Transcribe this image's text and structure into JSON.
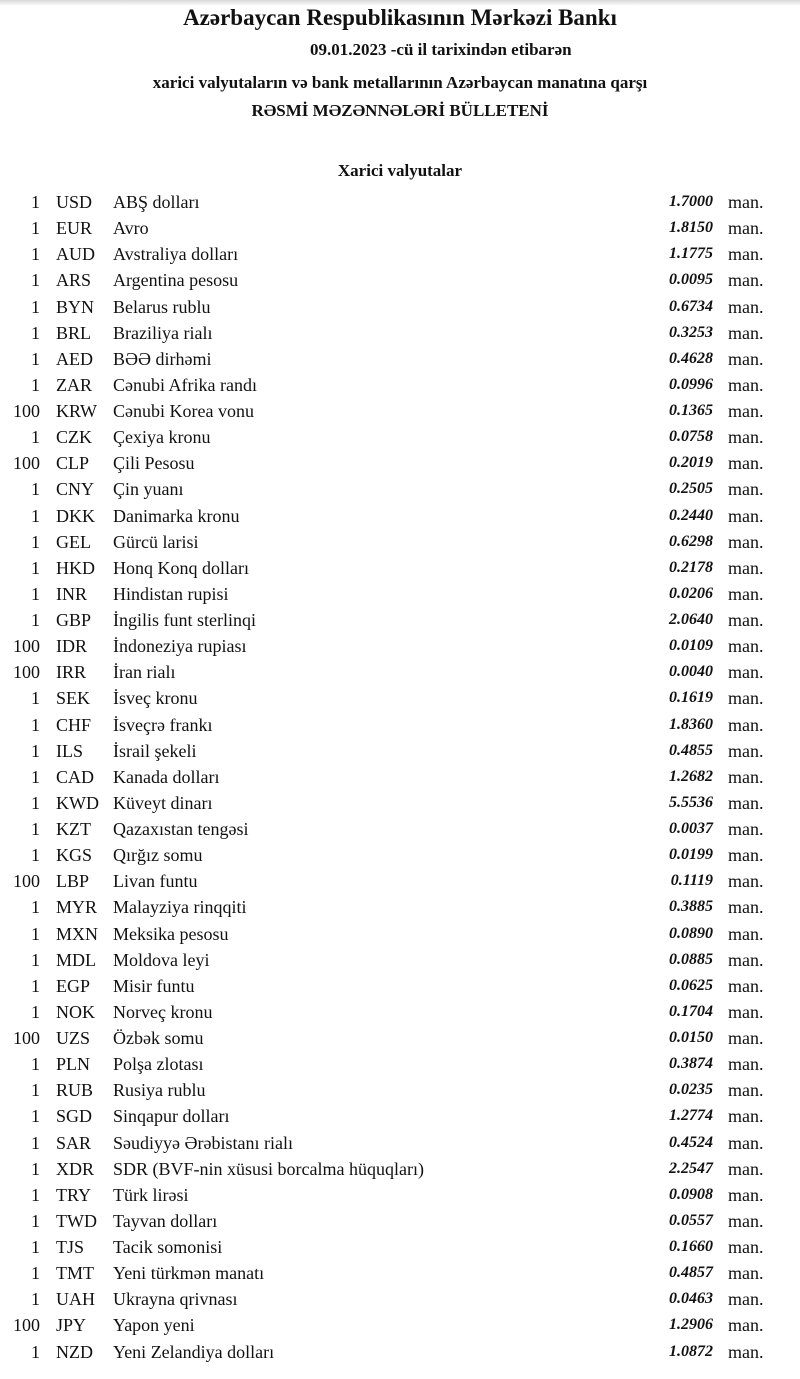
{
  "header": {
    "title": "Azərbaycan Respublikasının Mərkəzi Bankı",
    "date_line": "09.01.2023 -cü il tarixindən etibarən",
    "subtitle": "xarici valyutaların və bank metallarının Azərbaycan manatına qarşı",
    "bulletin": "RƏSMİ MƏZƏNNƏLƏRİ BÜLLETENİ",
    "section": "Xarici valyutalar"
  },
  "rates": [
    {
      "qty": "1",
      "code": "USD",
      "name": "ABŞ dolları",
      "value": "1.7000",
      "unit": "man."
    },
    {
      "qty": "1",
      "code": "EUR",
      "name": "Avro",
      "value": "1.8150",
      "unit": "man."
    },
    {
      "qty": "1",
      "code": "AUD",
      "name": "Avstraliya dolları",
      "value": "1.1775",
      "unit": "man."
    },
    {
      "qty": "1",
      "code": "ARS",
      "name": "Argentina pesosu",
      "value": "0.0095",
      "unit": "man."
    },
    {
      "qty": "1",
      "code": "BYN",
      "name": "Belarus rublu",
      "value": "0.6734",
      "unit": "man."
    },
    {
      "qty": "1",
      "code": "BRL",
      "name": "Braziliya rialı",
      "value": "0.3253",
      "unit": "man."
    },
    {
      "qty": "1",
      "code": "AED",
      "name": "BƏƏ dirhəmi",
      "value": "0.4628",
      "unit": "man."
    },
    {
      "qty": "1",
      "code": "ZAR",
      "name": "Cənubi Afrika randı",
      "value": "0.0996",
      "unit": "man."
    },
    {
      "qty": "100",
      "code": "KRW",
      "name": "Cənubi Korea vonu",
      "value": "0.1365",
      "unit": "man."
    },
    {
      "qty": "1",
      "code": "CZK",
      "name": "Çexiya kronu",
      "value": "0.0758",
      "unit": "man."
    },
    {
      "qty": "100",
      "code": "CLP",
      "name": "Çili Pesosu",
      "value": "0.2019",
      "unit": "man."
    },
    {
      "qty": "1",
      "code": "CNY",
      "name": "Çin yuanı",
      "value": "0.2505",
      "unit": "man."
    },
    {
      "qty": "1",
      "code": "DKK",
      "name": "Danimarka kronu",
      "value": "0.2440",
      "unit": "man."
    },
    {
      "qty": "1",
      "code": "GEL",
      "name": "Gürcü larisi",
      "value": "0.6298",
      "unit": "man."
    },
    {
      "qty": "1",
      "code": "HKD",
      "name": "Honq Konq dolları",
      "value": "0.2178",
      "unit": "man."
    },
    {
      "qty": "1",
      "code": "INR",
      "name": "Hindistan rupisi",
      "value": "0.0206",
      "unit": "man."
    },
    {
      "qty": "1",
      "code": "GBP",
      "name": "İngilis funt sterlinqi",
      "value": "2.0640",
      "unit": "man."
    },
    {
      "qty": "100",
      "code": "IDR",
      "name": "İndoneziya rupiası",
      "value": "0.0109",
      "unit": "man."
    },
    {
      "qty": "100",
      "code": "IRR",
      "name": "İran rialı",
      "value": "0.0040",
      "unit": "man."
    },
    {
      "qty": "1",
      "code": "SEK",
      "name": "İsveç kronu",
      "value": "0.1619",
      "unit": "man."
    },
    {
      "qty": "1",
      "code": "CHF",
      "name": "İsveçrə frankı",
      "value": "1.8360",
      "unit": "man."
    },
    {
      "qty": "1",
      "code": "ILS",
      "name": "İsrail şekeli",
      "value": "0.4855",
      "unit": "man."
    },
    {
      "qty": "1",
      "code": "CAD",
      "name": "Kanada dolları",
      "value": "1.2682",
      "unit": "man."
    },
    {
      "qty": "1",
      "code": "KWD",
      "name": "Küveyt dinarı",
      "value": "5.5536",
      "unit": "man."
    },
    {
      "qty": "1",
      "code": "KZT",
      "name": "Qazaxıstan tengəsi",
      "value": "0.0037",
      "unit": "man."
    },
    {
      "qty": "1",
      "code": "KGS",
      "name": "Qırğız somu",
      "value": "0.0199",
      "unit": "man."
    },
    {
      "qty": "100",
      "code": "LBP",
      "name": "Livan funtu",
      "value": "0.1119",
      "unit": "man."
    },
    {
      "qty": "1",
      "code": "MYR",
      "name": "Malayziya rinqqiti",
      "value": "0.3885",
      "unit": "man."
    },
    {
      "qty": "1",
      "code": "MXN",
      "name": "Meksika pesosu",
      "value": "0.0890",
      "unit": "man."
    },
    {
      "qty": "1",
      "code": "MDL",
      "name": "Moldova leyi",
      "value": "0.0885",
      "unit": "man."
    },
    {
      "qty": "1",
      "code": "EGP",
      "name": "Misir funtu",
      "value": "0.0625",
      "unit": "man."
    },
    {
      "qty": "1",
      "code": "NOK",
      "name": "Norveç kronu",
      "value": "0.1704",
      "unit": "man."
    },
    {
      "qty": "100",
      "code": "UZS",
      "name": "Özbək somu",
      "value": "0.0150",
      "unit": "man."
    },
    {
      "qty": "1",
      "code": "PLN",
      "name": "Polşa zlotası",
      "value": "0.3874",
      "unit": "man."
    },
    {
      "qty": "1",
      "code": "RUB",
      "name": "Rusiya rublu",
      "value": "0.0235",
      "unit": "man."
    },
    {
      "qty": "1",
      "code": "SGD",
      "name": "Sinqapur dolları",
      "value": "1.2774",
      "unit": "man."
    },
    {
      "qty": "1",
      "code": "SAR",
      "name": "Səudiyyə Ərəbistanı rialı",
      "value": "0.4524",
      "unit": "man."
    },
    {
      "qty": "1",
      "code": "XDR",
      "name": "SDR (BVF-nin xüsusi borcalma hüquqları)",
      "value": "2.2547",
      "unit": "man."
    },
    {
      "qty": "1",
      "code": "TRY",
      "name": "Türk lirəsi",
      "value": "0.0908",
      "unit": "man."
    },
    {
      "qty": "1",
      "code": "TWD",
      "name": "Tayvan dolları",
      "value": "0.0557",
      "unit": "man."
    },
    {
      "qty": "1",
      "code": "TJS",
      "name": "Tacik somonisi",
      "value": "0.1660",
      "unit": "man."
    },
    {
      "qty": "1",
      "code": "TMT",
      "name": "Yeni türkmən manatı",
      "value": "0.4857",
      "unit": "man."
    },
    {
      "qty": "1",
      "code": "UAH",
      "name": "Ukrayna qrivnası",
      "value": "0.0463",
      "unit": "man."
    },
    {
      "qty": "100",
      "code": "JPY",
      "name": "Yapon yeni",
      "value": "1.2906",
      "unit": "man."
    },
    {
      "qty": "1",
      "code": "NZD",
      "name": "Yeni Zelandiya dolları",
      "value": "1.0872",
      "unit": "man."
    }
  ]
}
